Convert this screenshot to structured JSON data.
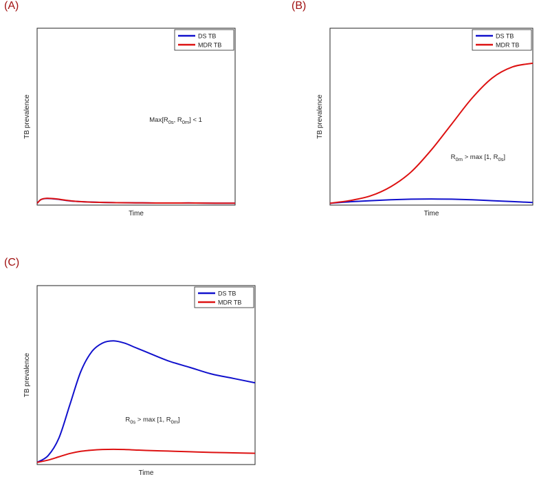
{
  "panels": [
    {
      "label": "(A)"
    },
    {
      "label": "(B)"
    },
    {
      "label": "(C)"
    }
  ],
  "chart_data": [
    {
      "type": "line",
      "xlabel": "Time",
      "ylabel": "TB prevalence",
      "x_ticks": "none",
      "y_ticks": "none",
      "grid": false,
      "legend": "top-right",
      "annotation": {
        "parts": [
          [
            "Max[R",
            ""
          ],
          [
            "0s",
            "sub"
          ],
          [
            ", R",
            ""
          ],
          [
            "0m",
            "sub"
          ],
          [
            "] < 1",
            ""
          ]
        ],
        "pos": [
          0.7,
          0.53
        ]
      },
      "x": [
        0,
        0.02,
        0.05,
        0.1,
        0.15,
        0.2,
        0.3,
        0.4,
        0.5,
        0.6,
        0.7,
        0.8,
        0.9,
        1.0
      ],
      "series": [
        {
          "name": "DS TB",
          "color": "#1010cc",
          "values": [
            0,
            0.022,
            0.028,
            0.024,
            0.016,
            0.011,
            0.006,
            0.004,
            0.003,
            0.002,
            0.002,
            0.002,
            0.001,
            0.001
          ]
        },
        {
          "name": "MDR TB",
          "color": "#dd1111",
          "values": [
            0,
            0.022,
            0.029,
            0.025,
            0.017,
            0.011,
            0.006,
            0.004,
            0.003,
            0.002,
            0.002,
            0.002,
            0.001,
            0.001
          ]
        }
      ]
    },
    {
      "type": "line",
      "xlabel": "Time",
      "ylabel": "TB prevalence",
      "x_ticks": "none",
      "y_ticks": "none",
      "grid": false,
      "legend": "top-right",
      "annotation": {
        "parts": [
          [
            "R",
            ""
          ],
          [
            "0m",
            "sub"
          ],
          [
            " > max [1, R",
            ""
          ],
          [
            "0s",
            "sub"
          ],
          [
            "]",
            ""
          ]
        ],
        "pos": [
          0.73,
          0.74
        ]
      },
      "x": [
        0,
        0.1,
        0.2,
        0.3,
        0.4,
        0.5,
        0.6,
        0.7,
        0.8,
        0.9,
        1.0
      ],
      "series": [
        {
          "name": "DS TB",
          "color": "#1010cc",
          "values": [
            0,
            0.008,
            0.014,
            0.019,
            0.022,
            0.023,
            0.022,
            0.019,
            0.014,
            0.009,
            0.004
          ]
        },
        {
          "name": "MDR TB",
          "color": "#dd1111",
          "values": [
            0,
            0.015,
            0.04,
            0.09,
            0.17,
            0.29,
            0.43,
            0.57,
            0.68,
            0.74,
            0.76
          ]
        }
      ]
    },
    {
      "type": "line",
      "xlabel": "Time",
      "ylabel": "TB prevalence",
      "x_ticks": "none",
      "y_ticks": "none",
      "grid": false,
      "legend": "top-right",
      "annotation": {
        "parts": [
          [
            "R",
            ""
          ],
          [
            "0s",
            "sub"
          ],
          [
            " > max [1, R",
            ""
          ],
          [
            "0m",
            "sub"
          ],
          [
            "]",
            ""
          ]
        ],
        "pos": [
          0.53,
          0.76
        ]
      },
      "x": [
        0,
        0.05,
        0.1,
        0.15,
        0.2,
        0.25,
        0.3,
        0.35,
        0.4,
        0.45,
        0.5,
        0.6,
        0.7,
        0.8,
        0.9,
        1.0
      ],
      "series": [
        {
          "name": "DS TB",
          "color": "#1010cc",
          "values": [
            0,
            0.03,
            0.11,
            0.26,
            0.41,
            0.5,
            0.54,
            0.55,
            0.54,
            0.52,
            0.5,
            0.46,
            0.43,
            0.4,
            0.38,
            0.36
          ]
        },
        {
          "name": "MDR TB",
          "color": "#dd1111",
          "values": [
            0,
            0.01,
            0.025,
            0.04,
            0.05,
            0.055,
            0.058,
            0.059,
            0.058,
            0.056,
            0.054,
            0.051,
            0.048,
            0.045,
            0.043,
            0.041
          ]
        }
      ]
    }
  ]
}
